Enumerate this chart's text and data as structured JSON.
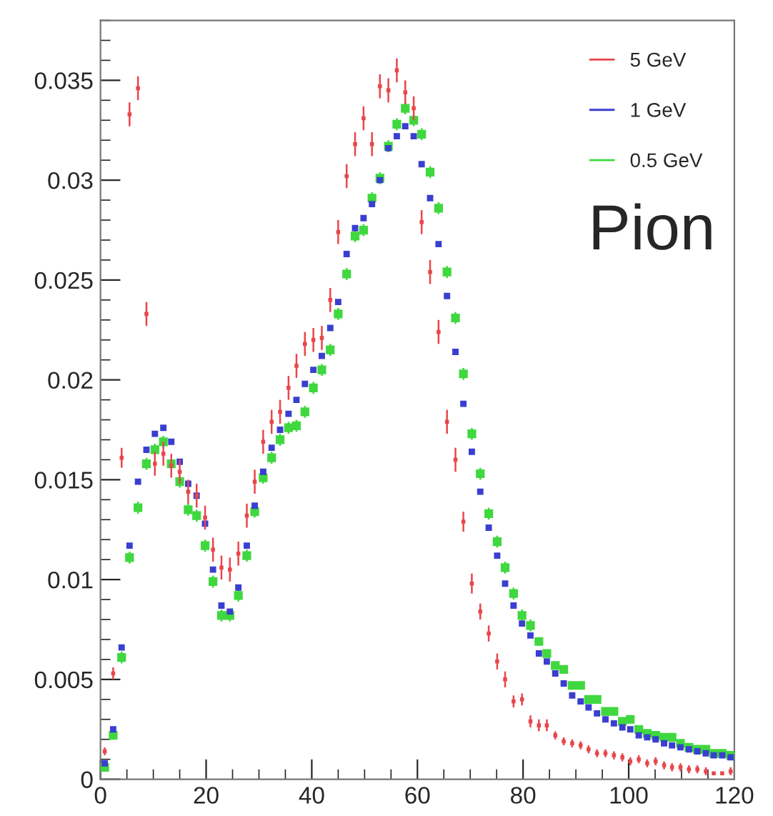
{
  "chart_data": {
    "type": "scatter",
    "marker": "square",
    "legend": "top right",
    "grid": false,
    "annotations": [
      "Pion"
    ],
    "x": [
      0.8,
      2.4,
      4.0,
      5.5,
      7.1,
      8.7,
      10.3,
      11.9,
      13.4,
      15.0,
      16.6,
      18.2,
      19.8,
      21.3,
      22.9,
      24.5,
      26.1,
      27.7,
      29.2,
      30.8,
      32.4,
      34.0,
      35.6,
      37.1,
      38.7,
      40.3,
      41.9,
      43.5,
      45.0,
      46.6,
      48.2,
      49.8,
      51.4,
      52.9,
      54.5,
      56.1,
      57.7,
      59.3,
      60.8,
      62.4,
      64.0,
      65.6,
      67.2,
      68.7,
      70.3,
      71.9,
      73.5,
      75.1,
      76.6,
      78.2,
      79.8,
      81.4,
      83.0,
      84.5,
      86.1,
      87.7,
      89.3,
      90.9,
      92.4,
      94.0,
      95.6,
      97.2,
      98.8,
      100.3,
      101.9,
      103.5,
      105.1,
      106.7,
      108.2,
      109.8,
      111.4,
      113.0,
      114.6,
      116.1,
      117.7,
      119.3
    ],
    "xlim": [
      0,
      120
    ],
    "xticks": [
      0,
      20,
      40,
      60,
      80,
      100,
      120
    ],
    "ylim": [
      0,
      0.038
    ],
    "yticks": [
      0,
      0.005,
      0.01,
      0.015,
      0.02,
      0.025,
      0.03,
      0.035
    ],
    "series": [
      {
        "name": "5 GeV",
        "color": "#e8464b",
        "values": [
          0.0014,
          0.0053,
          0.0161,
          0.0333,
          0.0346,
          0.0233,
          0.0158,
          0.0163,
          0.0157,
          0.0154,
          0.0144,
          0.0142,
          0.0131,
          0.0115,
          0.0106,
          0.0105,
          0.0113,
          0.0132,
          0.0149,
          0.0169,
          0.0179,
          0.0184,
          0.0196,
          0.0207,
          0.0218,
          0.022,
          0.0221,
          0.024,
          0.0274,
          0.0302,
          0.0318,
          0.0331,
          0.0318,
          0.0347,
          0.0345,
          0.0355,
          0.0344,
          0.0336,
          0.0279,
          0.0254,
          0.0224,
          0.0179,
          0.016,
          0.0129,
          0.0098,
          0.0084,
          0.0073,
          0.0059,
          0.005,
          0.0039,
          0.004,
          0.0029,
          0.0027,
          0.0027,
          0.0022,
          0.0019,
          0.0018,
          0.0017,
          0.0015,
          0.0013,
          0.0013,
          0.0012,
          0.0011,
          0.0009,
          0.001,
          0.0008,
          0.0009,
          0.0007,
          0.0006,
          0.0006,
          0.0005,
          0.0005,
          0.0004,
          0.0003,
          0.0003,
          0.0004
        ],
        "errors": [
          0.0002,
          0.0003,
          0.0005,
          0.0006,
          0.0006,
          0.0006,
          0.0006,
          0.0006,
          0.0006,
          0.0006,
          0.0006,
          0.0006,
          0.0006,
          0.0006,
          0.0006,
          0.0006,
          0.0006,
          0.0006,
          0.0006,
          0.0006,
          0.0006,
          0.0006,
          0.0006,
          0.0006,
          0.0006,
          0.0006,
          0.0006,
          0.0006,
          0.0006,
          0.0006,
          0.0006,
          0.0006,
          0.0006,
          0.0006,
          0.0006,
          0.0006,
          0.0006,
          0.0006,
          0.0006,
          0.0006,
          0.0006,
          0.0006,
          0.0006,
          0.0005,
          0.0005,
          0.0004,
          0.0004,
          0.0004,
          0.0004,
          0.0003,
          0.0003,
          0.0003,
          0.0003,
          0.0003,
          0.0002,
          0.0002,
          0.0002,
          0.0002,
          0.0002,
          0.0002,
          0.0002,
          0.0002,
          0.0002,
          0.0002,
          0.0002,
          0.0002,
          0.0002,
          0.0002,
          0.0002,
          0.0002,
          0.0002,
          0.0002,
          0.0002,
          null,
          null,
          0.0002
        ]
      },
      {
        "name": "1 GeV",
        "color": "#3a3fd0",
        "values": [
          0.0008,
          0.0025,
          0.0066,
          0.0117,
          0.0149,
          0.0165,
          0.0173,
          0.0176,
          0.0169,
          0.0159,
          0.0148,
          0.0142,
          0.0128,
          0.0105,
          0.0087,
          0.0084,
          0.0096,
          0.0117,
          0.0137,
          0.0154,
          0.0166,
          0.0175,
          0.0183,
          0.019,
          0.0198,
          0.0205,
          0.0212,
          0.0226,
          0.0239,
          0.0263,
          0.0276,
          0.0281,
          0.0288,
          0.03,
          0.0316,
          0.0322,
          0.0327,
          0.0322,
          0.0308,
          0.0291,
          0.0268,
          0.0242,
          0.0214,
          0.0188,
          0.0164,
          0.0144,
          0.0126,
          0.0112,
          0.0098,
          0.0087,
          0.0078,
          0.0072,
          0.0063,
          0.0059,
          0.0053,
          0.0048,
          0.0042,
          0.0039,
          0.0036,
          0.0033,
          0.003,
          0.0028,
          0.0026,
          0.0025,
          0.0022,
          0.0021,
          0.002,
          0.0018,
          0.0017,
          0.0016,
          0.0015,
          0.0014,
          0.0013,
          0.0012,
          0.0012,
          0.0011
        ]
      },
      {
        "name": "0.5 GeV",
        "color": "#3fd83f",
        "values": [
          0.0006,
          0.0022,
          0.0061,
          0.0111,
          0.0136,
          0.0158,
          0.0165,
          0.0169,
          0.0158,
          0.0149,
          0.0135,
          0.0132,
          0.0117,
          0.0099,
          0.0082,
          0.0082,
          0.0092,
          0.0112,
          0.0134,
          0.0151,
          0.0161,
          0.017,
          0.0176,
          0.0177,
          0.0184,
          0.0196,
          0.0205,
          0.0215,
          0.0233,
          0.0253,
          0.0272,
          0.0275,
          0.0291,
          0.0301,
          0.0317,
          0.0328,
          0.0336,
          0.033,
          0.0323,
          0.0304,
          0.0286,
          0.0254,
          0.0231,
          0.0203,
          0.0173,
          0.0153,
          0.0133,
          0.0119,
          0.0106,
          0.0093,
          0.0082,
          0.0077,
          0.0069,
          0.0063,
          0.0057,
          0.0055,
          0.0047,
          0.0047,
          0.004,
          0.004,
          0.0034,
          0.0034,
          0.0029,
          0.003,
          0.0025,
          0.0023,
          0.0022,
          0.0021,
          0.0021,
          0.0018,
          0.0016,
          0.0015,
          0.0015,
          0.0013,
          0.0013,
          0.0012
        ],
        "errors": [
          0.0002,
          0.0002,
          0.0003,
          0.0003,
          0.0003,
          0.0003,
          0.0003,
          0.0003,
          null,
          0.0003,
          0.0003,
          0.0003,
          0.0003,
          0.0003,
          0.0003,
          0.0003,
          0.0003,
          0.0003,
          0.0003,
          0.0003,
          0.0003,
          0.0003,
          0.0003,
          0.0003,
          0.0003,
          0.0003,
          0.0003,
          0.0003,
          0.0003,
          0.0003,
          0.0003,
          0.0003,
          0.0003,
          0.0003,
          0.0003,
          0.0003,
          0.0003,
          0.0003,
          0.0003,
          0.0003,
          0.0003,
          0.0003,
          0.0003,
          0.0003,
          0.0003,
          0.0003,
          0.0003,
          0.0003,
          0.0003,
          0.0003,
          0.0003,
          0.0003,
          0.0002,
          0.0002,
          0.0002,
          0.0002,
          0.0002,
          0.0002,
          0.0002,
          0.0002,
          0.0002,
          0.0002,
          0.0002,
          0.0002,
          0.0002,
          0.0002,
          0.0002,
          0.0002,
          0.0002,
          0.0002,
          0.0002,
          0.0002,
          0.0002,
          0.0002,
          0.0002,
          0.0002
        ]
      }
    ]
  }
}
